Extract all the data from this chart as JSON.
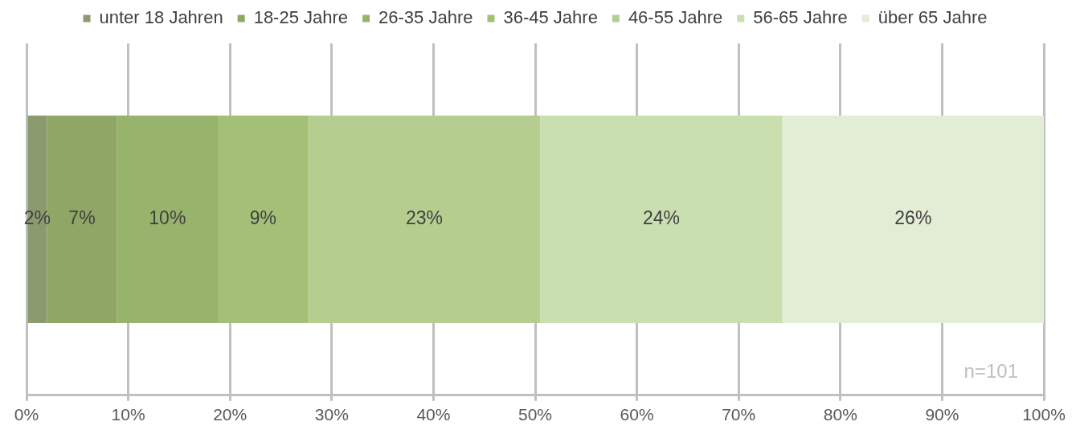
{
  "chart_data": {
    "type": "bar",
    "orientation": "horizontal",
    "stacked": true,
    "categories": [
      null
    ],
    "series": [
      {
        "name": "unter 18 Jahren",
        "color": "#8c9a70",
        "values": [
          2.0
        ],
        "value_labels": [
          "2%"
        ]
      },
      {
        "name": "18-25 Jahre",
        "color": "#8fa666",
        "values": [
          6.9
        ],
        "value_labels": [
          "7%"
        ]
      },
      {
        "name": "26-35 Jahre",
        "color": "#98b36c",
        "values": [
          9.9
        ],
        "value_labels": [
          "10%"
        ]
      },
      {
        "name": "36-45 Jahre",
        "color": "#a3c076",
        "values": [
          8.9
        ],
        "value_labels": [
          "9%"
        ]
      },
      {
        "name": "46-55 Jahre",
        "color": "#b5ce8f",
        "values": [
          22.8
        ],
        "value_labels": [
          "23%"
        ]
      },
      {
        "name": "56-65 Jahre",
        "color": "#cadfb0",
        "values": [
          23.8
        ],
        "value_labels": [
          "24%"
        ]
      },
      {
        "name": "über 65 Jahre",
        "color": "#e3edd5",
        "values": [
          25.7
        ],
        "value_labels": [
          "26%"
        ]
      }
    ],
    "xlim": [
      0,
      100
    ],
    "xticks": [
      {
        "value": 0,
        "label": "0%"
      },
      {
        "value": 10,
        "label": "10%"
      },
      {
        "value": 20,
        "label": "20%"
      },
      {
        "value": 30,
        "label": "30%"
      },
      {
        "value": 40,
        "label": "40%"
      },
      {
        "value": 50,
        "label": "50%"
      },
      {
        "value": 60,
        "label": "60%"
      },
      {
        "value": 70,
        "label": "70%"
      },
      {
        "value": 80,
        "label": "80%"
      },
      {
        "value": 90,
        "label": "90%"
      },
      {
        "value": 100,
        "label": "100%"
      }
    ],
    "grid": "x",
    "legend": "top",
    "annotations": [
      "n=101"
    ]
  }
}
